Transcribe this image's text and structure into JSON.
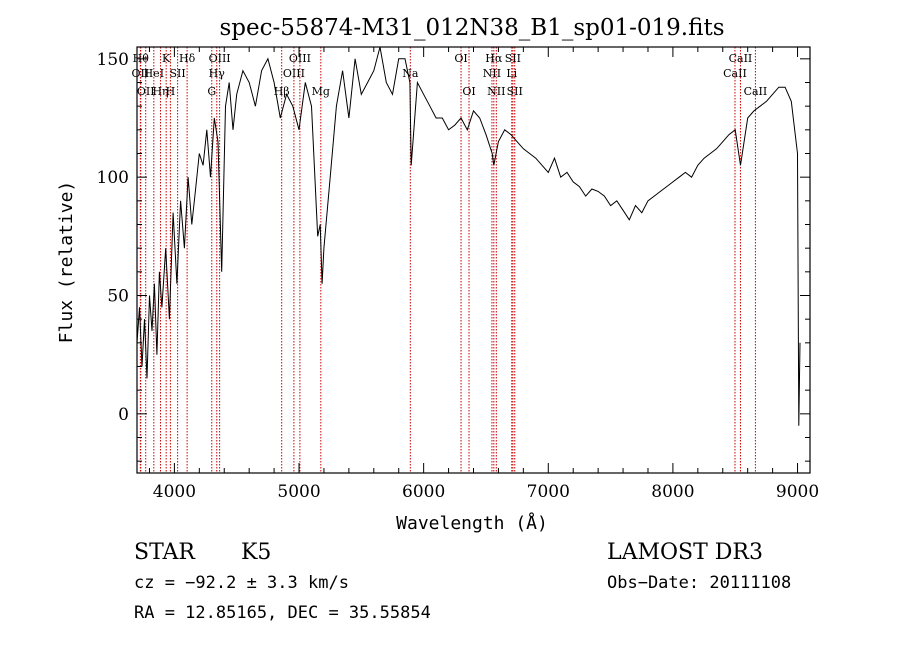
{
  "chart_data": {
    "type": "line",
    "title": "spec-55874-M31_012N38_B1_sp01-019.fits",
    "xlabel": "Wavelength (Å)",
    "ylabel": "Flux (relative)",
    "xlim": [
      3700,
      9100
    ],
    "ylim": [
      -25,
      155
    ],
    "x_ticks": [
      4000,
      5000,
      6000,
      7000,
      8000,
      9000
    ],
    "y_ticks": [
      0,
      50,
      100,
      150
    ],
    "series": [
      {
        "x": [
          3700,
          3720,
          3740,
          3760,
          3780,
          3800,
          3820,
          3840,
          3860,
          3880,
          3900,
          3930,
          3960,
          3990,
          4020,
          4050,
          4080,
          4110,
          4140,
          4170,
          4200,
          4230,
          4260,
          4290,
          4320,
          4350,
          4380,
          4410,
          4440,
          4470,
          4500,
          4550,
          4600,
          4650,
          4700,
          4750,
          4800,
          4850,
          4900,
          4950,
          5000,
          5050,
          5100,
          5150,
          5170,
          5185,
          5200,
          5250,
          5300,
          5350,
          5400,
          5450,
          5500,
          5550,
          5600,
          5650,
          5700,
          5750,
          5800,
          5850,
          5890,
          5900,
          5950,
          6000,
          6050,
          6100,
          6150,
          6200,
          6250,
          6300,
          6350,
          6400,
          6450,
          6500,
          6550,
          6563,
          6600,
          6650,
          6700,
          6750,
          6800,
          6850,
          6900,
          6950,
          7000,
          7050,
          7100,
          7150,
          7200,
          7250,
          7300,
          7350,
          7400,
          7450,
          7500,
          7550,
          7600,
          7650,
          7700,
          7750,
          7800,
          7850,
          7900,
          7950,
          8000,
          8050,
          8100,
          8150,
          8200,
          8250,
          8300,
          8350,
          8400,
          8450,
          8500,
          8542,
          8600,
          8650,
          8700,
          8750,
          8800,
          8850,
          8900,
          8950,
          9000,
          9010,
          9020
        ],
        "y": [
          30,
          45,
          20,
          40,
          15,
          50,
          35,
          55,
          25,
          60,
          45,
          70,
          40,
          85,
          55,
          90,
          70,
          100,
          80,
          95,
          110,
          105,
          120,
          100,
          125,
          115,
          60,
          130,
          140,
          120,
          135,
          145,
          140,
          130,
          145,
          150,
          140,
          125,
          135,
          130,
          120,
          140,
          130,
          75,
          80,
          55,
          70,
          100,
          130,
          145,
          125,
          150,
          135,
          140,
          145,
          155,
          140,
          135,
          150,
          150,
          140,
          105,
          140,
          135,
          130,
          125,
          125,
          120,
          122,
          125,
          120,
          128,
          125,
          118,
          110,
          105,
          115,
          120,
          118,
          115,
          112,
          110,
          108,
          105,
          102,
          108,
          100,
          102,
          98,
          96,
          92,
          95,
          94,
          92,
          88,
          90,
          86,
          82,
          88,
          85,
          90,
          92,
          94,
          96,
          98,
          100,
          102,
          100,
          105,
          108,
          110,
          112,
          115,
          118,
          120,
          105,
          125,
          128,
          130,
          132,
          135,
          138,
          138,
          132,
          110,
          -5,
          30
        ]
      }
    ],
    "lines": [
      {
        "w": 3730,
        "label": "Hθ",
        "row": 1
      },
      {
        "w": 3727,
        "label": "OII",
        "row": 2
      },
      {
        "w": 3770,
        "label": "OII",
        "row": 3
      },
      {
        "w": 3835,
        "label": "HeI",
        "row": 2
      },
      {
        "w": 3889,
        "label": "Hη",
        "row": 3
      },
      {
        "w": 3934,
        "label": "K",
        "row": 1
      },
      {
        "w": 3968,
        "label": "H",
        "row": 3
      },
      {
        "w": 4026,
        "label": "SII",
        "row": 2
      },
      {
        "w": 4102,
        "label": "Hδ",
        "row": 1
      },
      {
        "w": 4300,
        "label": "G",
        "row": 3
      },
      {
        "w": 4340,
        "label": "Hγ",
        "row": 2
      },
      {
        "w": 4363,
        "label": "OIII",
        "row": 1
      },
      {
        "w": 4861,
        "label": "Hβ",
        "row": 3
      },
      {
        "w": 4959,
        "label": "OIII",
        "row": 2
      },
      {
        "w": 5007,
        "label": "OIII",
        "row": 1
      },
      {
        "w": 5175,
        "label": "Mg",
        "row": 3
      },
      {
        "w": 5893,
        "label": "Na",
        "row": 2
      },
      {
        "w": 6300,
        "label": "OI",
        "row": 1
      },
      {
        "w": 6364,
        "label": "OI",
        "row": 3
      },
      {
        "w": 6548,
        "label": "NII",
        "row": 2
      },
      {
        "w": 6563,
        "label": "Hα",
        "row": 1
      },
      {
        "w": 6583,
        "label": "NII",
        "row": 3
      },
      {
        "w": 6707,
        "label": "Li",
        "row": 2
      },
      {
        "w": 6716,
        "label": "SII",
        "row": 1
      },
      {
        "w": 6731,
        "label": "SII",
        "row": 3
      },
      {
        "w": 8498,
        "label": "CaII",
        "row": 2
      },
      {
        "w": 8542,
        "label": "CaII",
        "row": 1
      },
      {
        "w": 8662,
        "label": "CaII",
        "row": 3
      }
    ]
  },
  "info": {
    "class": "STAR",
    "subclass": "K5",
    "survey": "LAMOST DR3",
    "cz": "cz = −92.2 ± 3.3 km/s",
    "obs_date": "Obs−Date: 20111108",
    "coords": "RA =  12.85165, DEC =  35.55854"
  },
  "colors": {
    "line_markers": "#cc0000",
    "spectrum": "#000000"
  }
}
